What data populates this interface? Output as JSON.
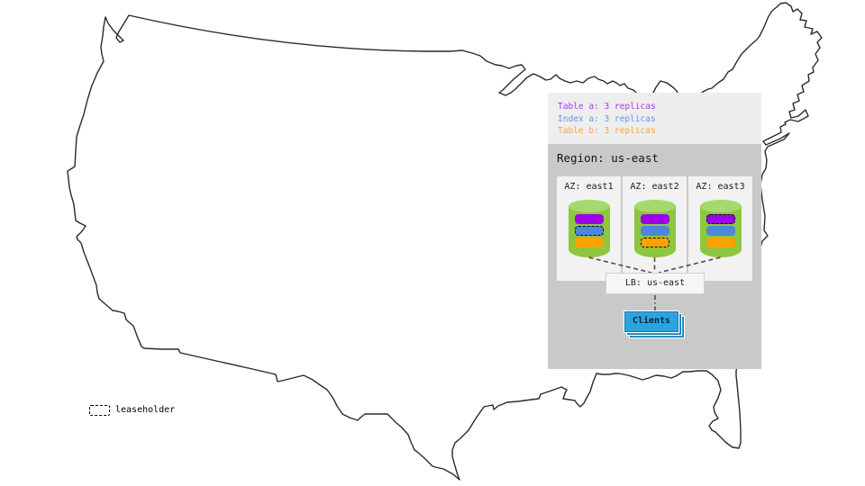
{
  "legend": {
    "items": [
      {
        "id": "table-a",
        "label": "Table a: 3 replicas",
        "color": "#a43be8"
      },
      {
        "id": "index-a",
        "label": "Index a: 3 replicas",
        "color": "#6a94e8"
      },
      {
        "id": "table-b",
        "label": "Table b: 3 replicas",
        "color": "#fba33c"
      }
    ]
  },
  "region": {
    "title": "Region: us-east",
    "lb_label": "LB: us-east",
    "clients_label": "Clients",
    "zones": [
      {
        "id": "east1",
        "label": "AZ: east1",
        "replicas": [
          {
            "name": "table-a",
            "color": "#9c00e8",
            "leaseholder": false
          },
          {
            "name": "index-a",
            "color": "#4d87d9",
            "leaseholder": true
          },
          {
            "name": "table-b",
            "color": "#ffa200",
            "leaseholder": false
          }
        ]
      },
      {
        "id": "east2",
        "label": "AZ: east2",
        "replicas": [
          {
            "name": "table-a",
            "color": "#9c00e8",
            "leaseholder": false
          },
          {
            "name": "index-a",
            "color": "#4d87d9",
            "leaseholder": false
          },
          {
            "name": "table-b",
            "color": "#ffa200",
            "leaseholder": true
          }
        ]
      },
      {
        "id": "east3",
        "label": "AZ: east3",
        "replicas": [
          {
            "name": "table-a",
            "color": "#9c00e8",
            "leaseholder": true
          },
          {
            "name": "index-a",
            "color": "#4d87d9",
            "leaseholder": false
          },
          {
            "name": "table-b",
            "color": "#ffa200",
            "leaseholder": false
          }
        ]
      }
    ]
  },
  "map_legend": {
    "leaseholder_label": "leaseholder"
  },
  "colors": {
    "cylinder_body": "#8dc63f",
    "cylinder_top": "#a6d96d",
    "legend_panel_bg": "#eeeeee",
    "region_panel_bg": "#c9c9c9",
    "az_box_bg": "#f2f2f2",
    "clients_blue": "#2aa4e1",
    "map_outline": "#2a2a2a"
  }
}
